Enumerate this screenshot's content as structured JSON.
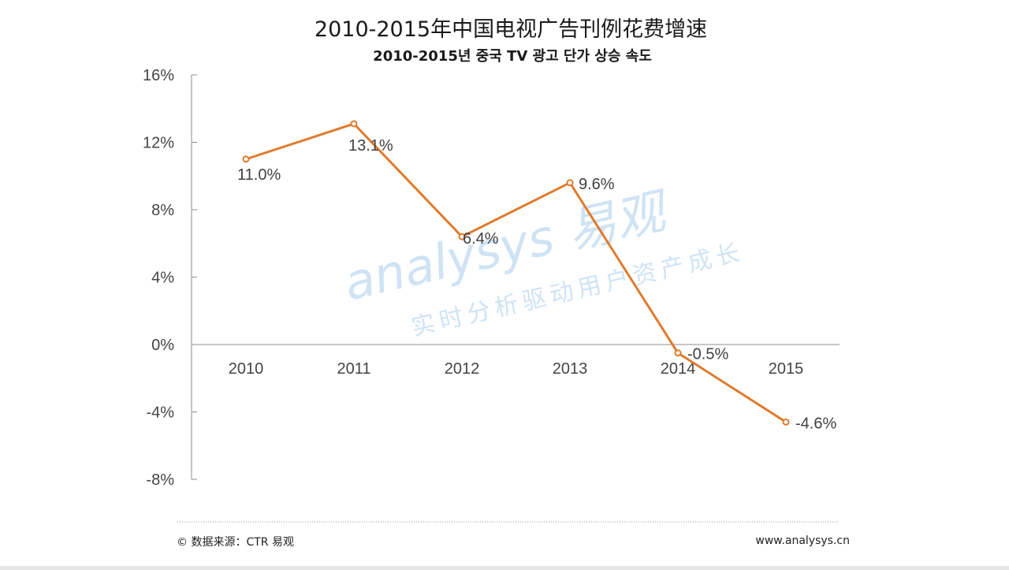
{
  "chart_data": {
    "type": "line",
    "title": "2010-2015年中国电视广告刊例花费增速",
    "subtitle": "2010-2015년 중국 TV 광고 단가 상승 속도",
    "categories": [
      "2010",
      "2011",
      "2012",
      "2013",
      "2014",
      "2015"
    ],
    "series": [
      {
        "values": [
          11.0,
          13.1,
          6.4,
          9.6,
          -0.5,
          -4.6
        ],
        "labels": [
          "11.0%",
          "13.1%",
          "6.4%",
          "9.6%",
          "-0.5%",
          "-4.6%"
        ],
        "color": "#e07b2e"
      }
    ],
    "yticks": [
      "16%",
      "12%",
      "8%",
      "4%",
      "0%",
      "-4%",
      "-8%"
    ],
    "ytick_values": [
      16,
      12,
      8,
      4,
      0,
      -4,
      -8
    ],
    "ylim": [
      -8,
      16
    ],
    "xlabel": "",
    "ylabel": "",
    "grid": false,
    "legend": "none",
    "source": "© 数据来源：CTR 易观",
    "website": "www.analysys.cn",
    "watermark": {
      "brand": "analysys 易观",
      "slogan": "实时分析驱动用户资产成长"
    },
    "colors": {
      "line": "#e07b2e",
      "axis": "#8c8c8c",
      "watermark": "#bcd8f0"
    }
  }
}
